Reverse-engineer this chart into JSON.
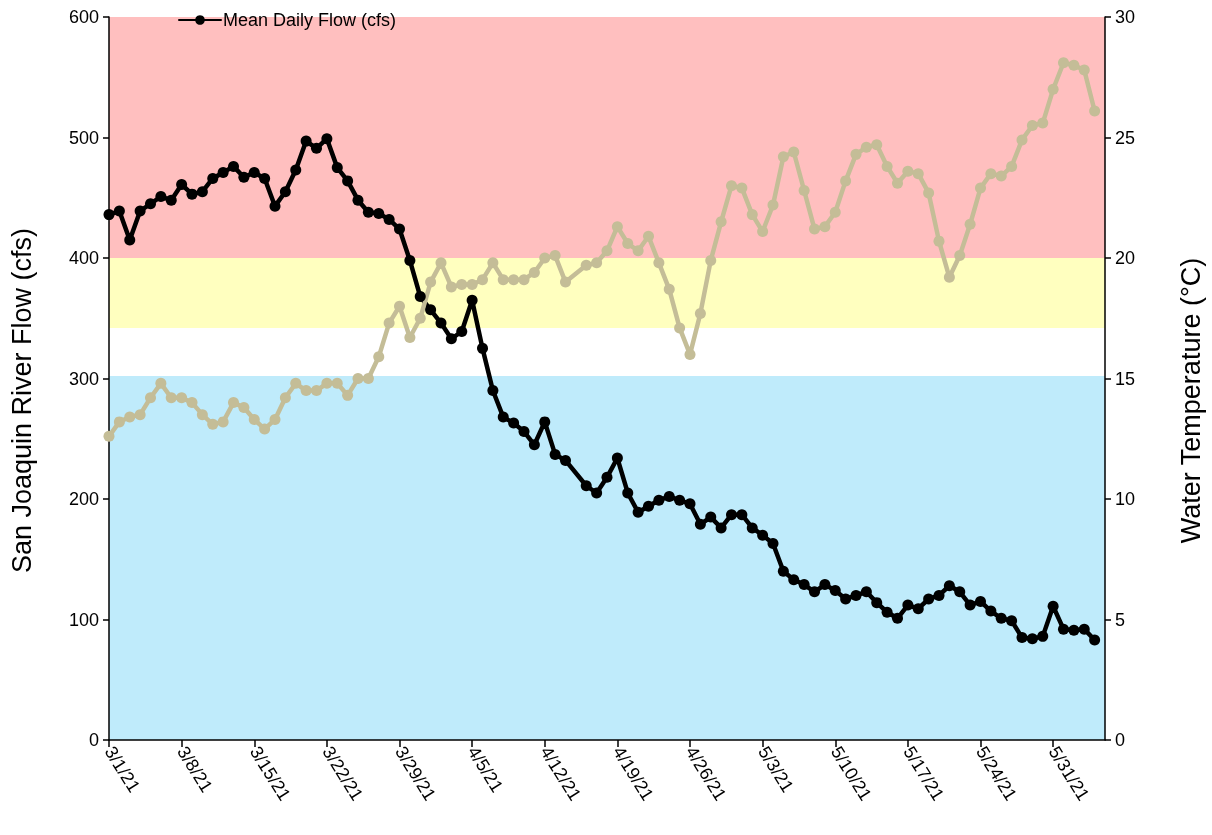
{
  "chart_data": {
    "type": "line",
    "ylabel": "San Joaquin River Flow (cfs)",
    "y2label": "Water Temperature (°C)",
    "x": [
      "--03-01",
      "--03-02",
      "--03-03",
      "--03-04",
      "--03-05",
      "--03-06",
      "--03-07",
      "--03-08",
      "--03-09",
      "--03-10",
      "--03-11",
      "--03-12",
      "--03-13",
      "--03-14",
      "--03-15",
      "--03-16",
      "--03-17",
      "--03-18",
      "--03-19",
      "--03-20",
      "--03-21",
      "--03-22",
      "--03-23",
      "--03-24",
      "--03-25",
      "--03-26",
      "--03-27",
      "--03-28",
      "--03-29",
      "--03-30",
      "--03-31",
      "--04-01",
      "--04-02",
      "--04-03",
      "--04-04",
      "--04-05",
      "--04-06",
      "--04-07",
      "--04-08",
      "--04-09",
      "--04-10",
      "--04-11",
      "--04-12",
      "--04-13",
      "--04-14",
      "--04-16",
      "--04-17",
      "--04-18",
      "--04-19",
      "--04-20",
      "--04-21",
      "--04-22",
      "--04-23",
      "--04-24",
      "--04-25",
      "--04-26",
      "--04-27",
      "--04-28",
      "--04-29",
      "--04-30",
      "--05-01",
      "--05-02",
      "--05-03",
      "--05-04",
      "--05-05",
      "--05-06",
      "--05-07",
      "--05-08",
      "--05-09",
      "--05-10",
      "--05-11",
      "--05-12",
      "--05-13",
      "--05-14",
      "--05-15",
      "--05-16",
      "--05-17",
      "--05-18",
      "--05-19",
      "--05-20",
      "--05-21",
      "--05-22",
      "--05-23",
      "--05-24",
      "--05-25",
      "--05-26",
      "--05-27",
      "--05-28",
      "--05-29",
      "--05-30",
      "--05-31",
      "--06-01",
      "--06-02",
      "--06-03",
      "--06-04"
    ],
    "series": [
      {
        "name": "Mean Daily Flow (cfs)",
        "color": "#000000",
        "values": [
          436,
          439,
          415,
          439,
          445,
          451,
          448,
          461,
          453,
          455,
          466,
          471,
          476,
          467,
          471,
          466,
          443,
          455,
          473,
          497,
          491,
          499,
          475,
          464,
          448,
          438,
          437,
          432,
          424,
          398,
          368,
          357,
          346,
          333,
          339,
          365,
          325,
          290,
          268,
          263,
          256,
          245,
          264,
          237,
          232,
          211,
          205,
          218,
          234,
          205,
          189,
          194,
          199,
          202,
          199,
          196,
          179,
          185,
          176,
          187,
          187,
          176,
          170,
          163,
          140,
          133,
          129,
          123,
          129,
          124,
          117,
          120,
          123,
          114,
          106,
          101,
          112,
          109,
          117,
          120,
          128,
          123,
          112,
          115,
          107,
          101,
          99,
          85,
          84,
          86,
          111,
          92,
          91,
          92,
          83
        ]
      },
      {
        "color": "#c4bd97",
        "axis": "y2",
        "values": [
          12.6,
          13.2,
          13.4,
          13.5,
          14.2,
          14.8,
          14.2,
          14.2,
          14.0,
          13.5,
          13.1,
          13.2,
          14.0,
          13.8,
          13.3,
          12.9,
          13.3,
          14.2,
          14.8,
          14.5,
          14.5,
          14.8,
          14.8,
          14.3,
          15.0,
          15.0,
          15.9,
          17.3,
          18.0,
          16.7,
          17.5,
          19.0,
          19.8,
          18.8,
          18.9,
          18.9,
          19.1,
          19.8,
          19.1,
          19.1,
          19.1,
          19.4,
          20.0,
          20.1,
          19.0,
          19.7,
          19.8,
          20.3,
          21.3,
          20.6,
          20.3,
          20.9,
          19.8,
          18.7,
          17.1,
          16.0,
          17.7,
          19.9,
          21.5,
          23.0,
          22.9,
          21.8,
          21.1,
          22.2,
          24.2,
          24.4,
          22.8,
          21.2,
          21.3,
          21.9,
          23.2,
          24.3,
          24.6,
          24.7,
          23.8,
          23.1,
          23.6,
          23.5,
          22.7,
          20.7,
          19.2,
          20.1,
          21.4,
          22.9,
          23.5,
          23.4,
          23.8,
          24.9,
          25.5,
          25.6,
          27.0,
          28.1,
          28.0,
          27.8,
          26.1
        ]
      }
    ],
    "xlim": [
      "--03-01",
      "--06-05"
    ],
    "xticks": [
      {
        "value": "--03-01",
        "label": "3/1/21"
      },
      {
        "value": "--03-08",
        "label": "3/8/21"
      },
      {
        "value": "--03-15",
        "label": "3/15/21"
      },
      {
        "value": "--03-22",
        "label": "3/22/21"
      },
      {
        "value": "--03-29",
        "label": "3/29/21"
      },
      {
        "value": "--04-05",
        "label": "4/5/21"
      },
      {
        "value": "--04-12",
        "label": "4/12/21"
      },
      {
        "value": "--04-19",
        "label": "4/19/21"
      },
      {
        "value": "--04-26",
        "label": "4/26/21"
      },
      {
        "value": "--05-03",
        "label": "5/3/21"
      },
      {
        "value": "--05-10",
        "label": "5/10/21"
      },
      {
        "value": "--05-17",
        "label": "5/17/21"
      },
      {
        "value": "--05-24",
        "label": "5/24/21"
      },
      {
        "value": "--05-31",
        "label": "5/31/21"
      }
    ],
    "ylim": [
      0,
      600
    ],
    "yticks": [
      0,
      100,
      200,
      300,
      400,
      500,
      600
    ],
    "y2lim": [
      0,
      30
    ],
    "y2ticks": [
      0,
      5,
      10,
      15,
      20,
      25,
      30
    ],
    "bands": [
      {
        "axis": "y2",
        "from": 20,
        "to": 30,
        "color": "#ffbfbf"
      },
      {
        "axis": "y2",
        "from": 17.1,
        "to": 20,
        "color": "#ffffbf"
      },
      {
        "axis": "y2",
        "from": 0,
        "to": 15.1,
        "color": "#bfebfb"
      }
    ],
    "legend": "top left",
    "marker": "circle",
    "line_style": "solid",
    "grid": false
  }
}
